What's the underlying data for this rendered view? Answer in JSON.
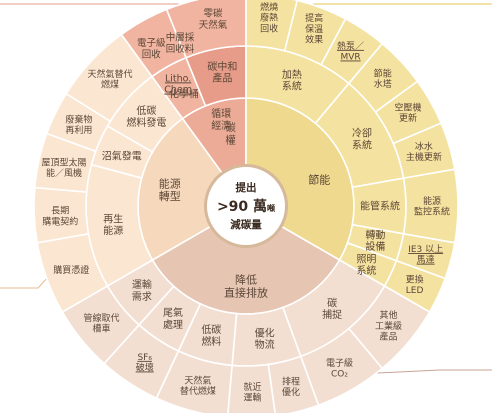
{
  "colors": {
    "red": "#f0b4a0",
    "red_inner": "#ecab97",
    "red_deep": "#e69c88",
    "yellow": "#f4e2a0",
    "yellow_inner": "#efd98e",
    "brown": "#f3dfd2",
    "brown_inner": "#e6c5b3",
    "orange": "#fbe6d2",
    "orange_inner": "#f6d8bc",
    "border": "#ffffff",
    "line_red": "#e59c86",
    "line_yellow": "#e8c55a",
    "line_brown": "#c9a393",
    "line_orange": "#e9b98d",
    "center_fill": "#ffffff",
    "center_ring": "#d6b89a"
  },
  "center": {
    "line1": "提出",
    "line2_main": ">90 萬",
    "line2_unit": "噸",
    "line3": "減碳量"
  },
  "categories": [
    {
      "key": "carbon_right",
      "label": [
        "碳",
        "權"
      ]
    },
    {
      "key": "energy_saving",
      "label": [
        "節能"
      ]
    },
    {
      "key": "reduce_emission",
      "label": [
        "降低",
        "直接排放"
      ]
    },
    {
      "key": "energy_transform",
      "label": [
        "能源",
        "轉型"
      ]
    }
  ],
  "subcategories": [
    {
      "key": "recycled_material",
      "label": [
        "化學桶"
      ]
    },
    {
      "key": "carbon_neutral_product",
      "label": [
        "碳中和",
        "產品"
      ]
    },
    {
      "key": "circular_economy",
      "label": [
        "循環",
        "經濟"
      ]
    },
    {
      "key": "heating",
      "label": [
        "加熱",
        "系統"
      ]
    },
    {
      "key": "cooling",
      "label": [
        "冷卻",
        "系統"
      ]
    },
    {
      "key": "piping",
      "label": [
        "能管系統"
      ]
    },
    {
      "key": "drive",
      "label": [
        "轉動",
        "設備"
      ]
    },
    {
      "key": "lighting",
      "label": [
        "照明",
        "系統"
      ]
    },
    {
      "key": "carbon_capture",
      "label": [
        "碳",
        "捕捉"
      ]
    },
    {
      "key": "low_carbon_fuel",
      "label": [
        "低碳",
        "燃料"
      ]
    },
    {
      "key": "tail_gas",
      "label": [
        "尾氣",
        "處理"
      ]
    },
    {
      "key": "transport",
      "label": [
        "運輸",
        "需求"
      ]
    },
    {
      "key": "renewable",
      "label": [
        "再生",
        "能源"
      ]
    },
    {
      "key": "biogas",
      "label": [
        "沼氣發電"
      ]
    },
    {
      "key": "low_carbon_gen",
      "label": [
        "低碳",
        "燃料發電"
      ]
    }
  ],
  "outer_items": [
    {
      "key": "zero_carbon_gas",
      "label": [
        "零碳",
        "天然氣"
      ]
    },
    {
      "key": "waste_heat",
      "label": [
        "燃燒",
        "廢熱",
        "回收"
      ]
    },
    {
      "key": "insulation",
      "label": [
        "提高",
        "保溫",
        "效果"
      ]
    },
    {
      "key": "heat_pump",
      "label": [
        "熱泵／",
        "MVR"
      ]
    },
    {
      "key": "cooling_tower",
      "label": [
        "節能",
        "水塔"
      ]
    },
    {
      "key": "air_compressor",
      "label": [
        "空壓機",
        "更新"
      ]
    },
    {
      "key": "chiller",
      "label": [
        "冰水",
        "主機更新"
      ]
    },
    {
      "key": "energy_monitor",
      "label": [
        "能源",
        "監控系統"
      ]
    },
    {
      "key": "ie3_motor",
      "label": [
        "IE3 以上",
        "馬達"
      ]
    },
    {
      "key": "led",
      "label": [
        "更換",
        "LED"
      ]
    },
    {
      "key": "other_industrial",
      "label": [
        "其他",
        "工業級",
        "產品"
      ]
    },
    {
      "key": "electronic_co2",
      "label": [
        "電子級",
        "CO₂"
      ]
    },
    {
      "key": "process_opt",
      "label": [
        "排程",
        "優化"
      ]
    },
    {
      "key": "nearby_transport",
      "label": [
        "就近",
        "運輸"
      ]
    },
    {
      "key": "natural_gas_fuel",
      "label": [
        "天然氣",
        "替代燃煤"
      ]
    },
    {
      "key": "sf6",
      "label": [
        "SF₆",
        "破壞"
      ]
    },
    {
      "key": "pipeline",
      "label": [
        "管線取代",
        "槽車"
      ]
    },
    {
      "key": "optimize_logistics",
      "label": [
        "優化",
        "物流"
      ]
    },
    {
      "key": "rec",
      "label": [
        "購買憑證"
      ]
    },
    {
      "key": "ppa",
      "label": [
        "長期",
        "購電契約"
      ]
    },
    {
      "key": "rooftop_solar",
      "label": [
        "屋頂型太陽",
        "能／風機"
      ]
    },
    {
      "key": "waste_reuse",
      "label": [
        "廢棄物",
        "再利用"
      ]
    },
    {
      "key": "gas_for_coal",
      "label": [
        "天然氣替代",
        "燃煤"
      ]
    },
    {
      "key": "electronic_recycle",
      "label": [
        "電子級",
        "回收"
      ]
    },
    {
      "key": "mid_layer",
      "label": [
        "中層採",
        "回收料"
      ]
    },
    {
      "key": "litho_chem",
      "label": [
        "Litho.",
        "Chem"
      ]
    }
  ]
}
